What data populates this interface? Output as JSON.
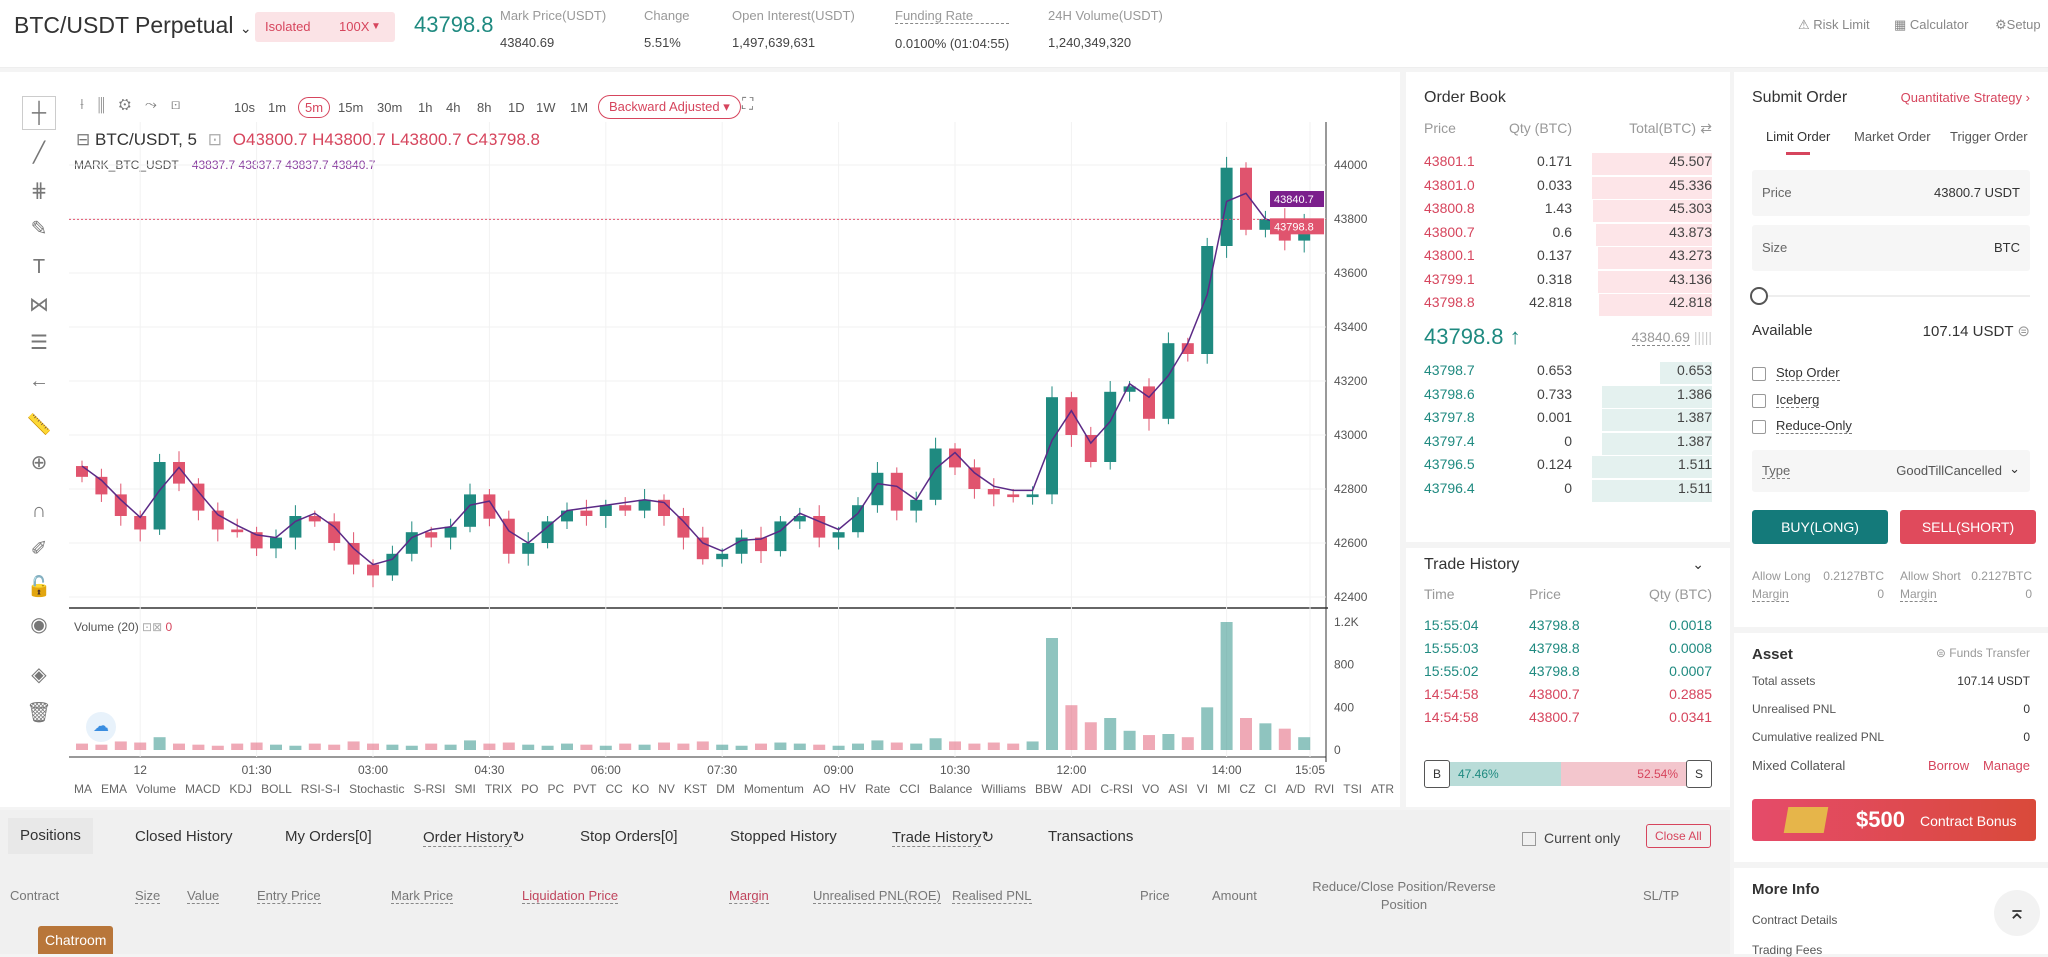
{
  "header": {
    "symbol": "BTC/USDT Perpetual",
    "margin_mode": "Isolated",
    "leverage": "100X",
    "last_price": "43798.8",
    "stats": [
      {
        "label": "Mark Price(USDT)",
        "value": "43840.69"
      },
      {
        "label": "Change",
        "value": "5.51%"
      },
      {
        "label": "Open Interest(USDT)",
        "value": "1,497,639,631"
      },
      {
        "label": "Funding Rate",
        "value": "0.0100% (01:04:55)"
      },
      {
        "label": "24H Volume(USDT)",
        "value": "1,240,349,320"
      }
    ],
    "links": [
      "Risk Limit",
      "Calculator",
      "Setup"
    ]
  },
  "chart_toolbar": {
    "timeframes": [
      "10s",
      "1m",
      "5m",
      "15m",
      "30m",
      "1h",
      "4h",
      "8h",
      "1D",
      "1W",
      "1M"
    ],
    "selected": "5m",
    "adjust": "Backward Adjusted"
  },
  "legend": {
    "symbol": "BTC/USDT, 5",
    "o": "O43800.7",
    "h": "H43800.7",
    "l": "L43800.7",
    "c": "C43798.8",
    "mark_label": "MARK_BTC_USDT",
    "mark_values": [
      "43837.7",
      "43837.7",
      "43837.7",
      "43840.7"
    ],
    "volume_label": "Volume (20)",
    "volume_value": "0"
  },
  "price_tags": {
    "mark": "43840.7",
    "last": "43798.8"
  },
  "indicators": [
    "MA",
    "EMA",
    "Volume",
    "MACD",
    "KDJ",
    "BOLL",
    "RSI-S-I",
    "Stochastic",
    "S-RSI",
    "SMI",
    "TRIX",
    "PO",
    "PC",
    "PVT",
    "CC",
    "KO",
    "NV",
    "KST",
    "DM",
    "Momentum",
    "AO",
    "HV",
    "Rate",
    "CCI",
    "Balance",
    "Williams",
    "BBW",
    "ADI",
    "C-RSI",
    "VO",
    "ASI",
    "VI",
    "MI",
    "CZ",
    "CI",
    "A/D",
    "RVI",
    "TSI",
    "ATR"
  ],
  "chart_data": {
    "type": "candlestick",
    "interval": "15m sampled",
    "price_ticks": [
      42400,
      42600,
      42800,
      43000,
      43200,
      43400,
      43600,
      43800,
      44000
    ],
    "ylim": [
      42300,
      44150
    ],
    "volume_ticks": [
      "0",
      "400",
      "800",
      "1.2K"
    ],
    "time_ticks": [
      {
        "label": "12",
        "index": 3
      },
      {
        "label": "01:30",
        "index": 9
      },
      {
        "label": "03:00",
        "index": 15
      },
      {
        "label": "04:30",
        "index": 21
      },
      {
        "label": "06:00",
        "index": 27
      },
      {
        "label": "07:30",
        "index": 33
      },
      {
        "label": "09:00",
        "index": 39
      },
      {
        "label": "10:30",
        "index": 45
      },
      {
        "label": "12:00",
        "index": 51
      },
      {
        "label": "14:00",
        "index": 59
      },
      {
        "label": "15:05",
        "index": 63.3
      }
    ],
    "close": [
      42845,
      42780,
      42700,
      42650,
      42900,
      42820,
      42720,
      42650,
      42640,
      42580,
      42620,
      42700,
      42680,
      42600,
      42520,
      42480,
      42560,
      42640,
      42620,
      42660,
      42780,
      42690,
      42560,
      42600,
      42680,
      42720,
      42700,
      42740,
      42720,
      42760,
      42700,
      42620,
      42540,
      42560,
      42620,
      42570,
      42680,
      42700,
      42620,
      42640,
      42740,
      42860,
      42720,
      42760,
      42950,
      42880,
      42800,
      42780,
      42770,
      42780,
      43140,
      43000,
      42900,
      43160,
      43180,
      43060,
      43340,
      43300,
      43700,
      43990,
      43760,
      43800,
      43720,
      43798.8
    ],
    "volume": [
      60,
      50,
      80,
      70,
      120,
      60,
      50,
      40,
      60,
      70,
      50,
      40,
      60,
      50,
      80,
      60,
      50,
      40,
      60,
      50,
      90,
      60,
      70,
      50,
      40,
      60,
      50,
      40,
      60,
      50,
      70,
      60,
      80,
      50,
      40,
      60,
      70,
      60,
      50,
      40,
      60,
      90,
      70,
      60,
      110,
      80,
      60,
      70,
      60,
      80,
      1050,
      420,
      260,
      300,
      180,
      140,
      150,
      120,
      400,
      1200,
      300,
      250,
      200,
      120
    ]
  },
  "order_book": {
    "title": "Order Book",
    "headers": [
      "Price",
      "Qty (BTC)",
      "Total(BTC)"
    ],
    "asks": [
      [
        "43801.1",
        "0.171",
        "45.507"
      ],
      [
        "43801.0",
        "0.033",
        "45.336"
      ],
      [
        "43800.8",
        "1.43",
        "45.303"
      ],
      [
        "43800.7",
        "0.6",
        "43.873"
      ],
      [
        "43800.1",
        "0.137",
        "43.273"
      ],
      [
        "43799.1",
        "0.318",
        "43.136"
      ],
      [
        "43798.8",
        "42.818",
        "42.818"
      ]
    ],
    "mid_price": "43798.8",
    "mid_mark": "43840.69",
    "bids": [
      [
        "43798.7",
        "0.653",
        "0.653"
      ],
      [
        "43798.6",
        "0.733",
        "1.386"
      ],
      [
        "43797.8",
        "0.001",
        "1.387"
      ],
      [
        "43797.4",
        "0",
        "1.387"
      ],
      [
        "43796.5",
        "0.124",
        "1.511"
      ],
      [
        "43796.4",
        "0",
        "1.511"
      ]
    ]
  },
  "trade_history": {
    "title": "Trade History",
    "headers": [
      "Time",
      "Price",
      "Qty (BTC)"
    ],
    "rows": [
      [
        "15:55:04",
        "43798.8",
        "0.0018",
        "buy"
      ],
      [
        "15:55:03",
        "43798.8",
        "0.0008",
        "buy"
      ],
      [
        "15:55:02",
        "43798.8",
        "0.0007",
        "buy"
      ],
      [
        "14:54:58",
        "43800.7",
        "0.2885",
        "sell"
      ],
      [
        "14:54:58",
        "43800.7",
        "0.0341",
        "sell"
      ]
    ],
    "buy_label": "B",
    "sell_label": "S",
    "buy_pct": "47.46%",
    "sell_pct": "52.54%",
    "buy_ratio": 0.4746
  },
  "submit": {
    "title": "Submit Order",
    "strategy": "Quantitative Strategy",
    "tabs": [
      "Limit Order",
      "Market Order",
      "Trigger Order"
    ],
    "price_label": "Price",
    "price_value": "43800.7 USDT",
    "size_label": "Size",
    "size_unit": "BTC",
    "slider": 0,
    "available_label": "Available",
    "available_value": "107.14 USDT",
    "checks": [
      "Stop Order",
      "Iceberg",
      "Reduce-Only"
    ],
    "type_label": "Type",
    "type_value": "GoodTillCancelled",
    "buy": "BUY(LONG)",
    "sell": "SELL(SHORT)",
    "allow_long": "Allow Long",
    "allow_long_v": "0.2127BTC",
    "allow_short": "Allow Short",
    "allow_short_v": "0.2127BTC",
    "margin": "Margin",
    "margin_v": "0"
  },
  "asset": {
    "title": "Asset",
    "transfer": "Funds Transfer",
    "rows": [
      [
        "Total assets",
        "107.14 USDT"
      ],
      [
        "Unrealised PNL",
        "0"
      ],
      [
        "Cumulative realized PNL",
        "0"
      ]
    ],
    "collateral": "Mixed Collateral",
    "borrow": "Borrow",
    "manage": "Manage",
    "bonus_amount": "$500",
    "bonus_text": "Contract Bonus"
  },
  "more_info": {
    "title": "More Info",
    "items": [
      "Contract Details",
      "Trading Fees"
    ]
  },
  "bottom": {
    "tabs": [
      "Positions",
      "Closed History",
      "My Orders[0]",
      "Order History",
      "Stop Orders[0]",
      "Stopped History",
      "Trade History",
      "Transactions"
    ],
    "current_only": "Current only",
    "close_all": "Close All",
    "columns": [
      "Contract",
      "Size",
      "Value",
      "Entry Price",
      "Mark Price",
      "Liquidation Price",
      "Margin",
      "Unrealised PNL(ROE)",
      "Realised PNL",
      "Price",
      "Amount",
      "Reduce/Close Position/Reverse Position",
      "SL/TP"
    ],
    "chatroom": "Chatroom"
  },
  "colors": {
    "up": "#1f8a80",
    "down": "#e0546e",
    "accent": "#d6455d",
    "buy": "#147a7a",
    "sell": "#e04a5c"
  }
}
